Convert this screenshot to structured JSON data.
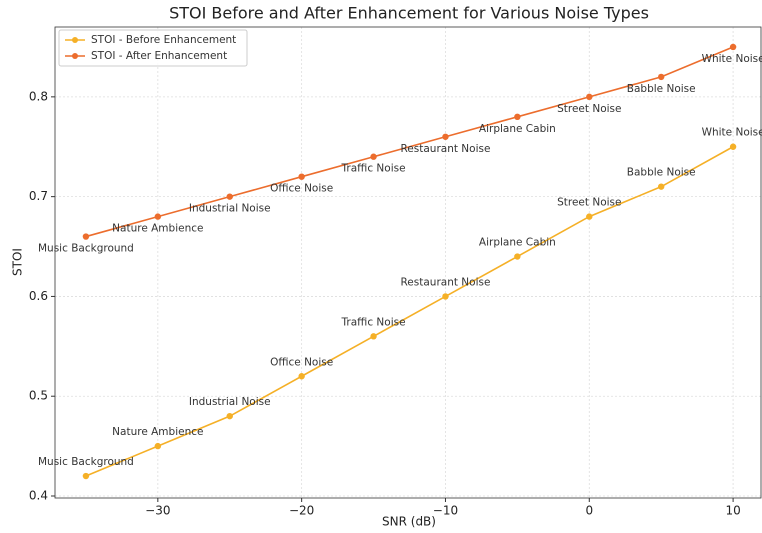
{
  "chart_data": {
    "type": "line",
    "title": "STOI Before and After Enhancement for Various Noise Types",
    "xlabel": "SNR (dB)",
    "ylabel": "STOI",
    "x": [
      -35,
      -30,
      -25,
      -20,
      -15,
      -10,
      -5,
      0,
      5,
      10
    ],
    "point_labels": [
      "Music Background",
      "Nature Ambience",
      "Industrial Noise",
      "Office Noise",
      "Traffic Noise",
      "Restaurant Noise",
      "Airplane Cabin",
      "Street Noise",
      "Babble Noise",
      "White Noise"
    ],
    "series": [
      {
        "name": "STOI - Before Enhancement",
        "color": "#f5b027",
        "values": [
          0.42,
          0.45,
          0.48,
          0.52,
          0.56,
          0.6,
          0.64,
          0.68,
          0.71,
          0.75
        ]
      },
      {
        "name": "STOI - After Enhancement",
        "color": "#ec6d2d",
        "values": [
          0.66,
          0.68,
          0.7,
          0.72,
          0.74,
          0.76,
          0.78,
          0.8,
          0.82,
          0.85
        ]
      }
    ],
    "xlim": [
      -37.15,
      11.94
    ],
    "xticks": [
      {
        "value": -30,
        "label": "−30"
      },
      {
        "value": -20,
        "label": "−20"
      },
      {
        "value": -10,
        "label": "−10"
      },
      0,
      10
    ],
    "ylim": [
      0.398,
      0.87
    ],
    "yticks": [
      0.4,
      0.5,
      0.6,
      0.7,
      0.8
    ],
    "grid": true,
    "legend": "upper left"
  }
}
